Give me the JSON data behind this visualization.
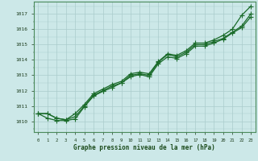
{
  "xlabel": "Graphe pression niveau de la mer (hPa)",
  "xlim": [
    -0.5,
    23.5
  ],
  "ylim": [
    1009.3,
    1017.8
  ],
  "yticks": [
    1010,
    1011,
    1012,
    1013,
    1014,
    1015,
    1016,
    1017
  ],
  "xticks": [
    0,
    1,
    2,
    3,
    4,
    5,
    6,
    7,
    8,
    9,
    10,
    11,
    12,
    13,
    14,
    15,
    16,
    17,
    18,
    19,
    20,
    21,
    22,
    23
  ],
  "bg_color": "#cce8e8",
  "grid_major_color": "#aacccc",
  "grid_minor_color": "#aacccc",
  "line_color": "#1a6b2a",
  "line1": [
    1010.5,
    1010.5,
    1010.2,
    1010.1,
    1010.5,
    1011.1,
    1011.8,
    1012.1,
    1012.4,
    1012.6,
    1013.1,
    1013.2,
    1013.1,
    1013.9,
    1014.4,
    1014.3,
    1014.6,
    1015.1,
    1015.1,
    1015.3,
    1015.6,
    1016.0,
    1016.9,
    1017.5
  ],
  "line2": [
    1010.5,
    1010.5,
    1010.2,
    1010.1,
    1010.3,
    1011.0,
    1011.7,
    1012.0,
    1012.3,
    1012.5,
    1013.0,
    1013.1,
    1013.0,
    1013.85,
    1014.35,
    1014.2,
    1014.5,
    1015.0,
    1015.0,
    1015.2,
    1015.4,
    1015.8,
    1016.2,
    1017.0
  ],
  "line3": [
    1010.5,
    1010.2,
    1010.05,
    1010.05,
    1010.15,
    1010.95,
    1011.65,
    1011.95,
    1012.2,
    1012.5,
    1012.9,
    1013.05,
    1012.9,
    1013.75,
    1014.2,
    1014.1,
    1014.4,
    1014.9,
    1014.9,
    1015.1,
    1015.35,
    1015.75,
    1016.1,
    1016.8
  ]
}
